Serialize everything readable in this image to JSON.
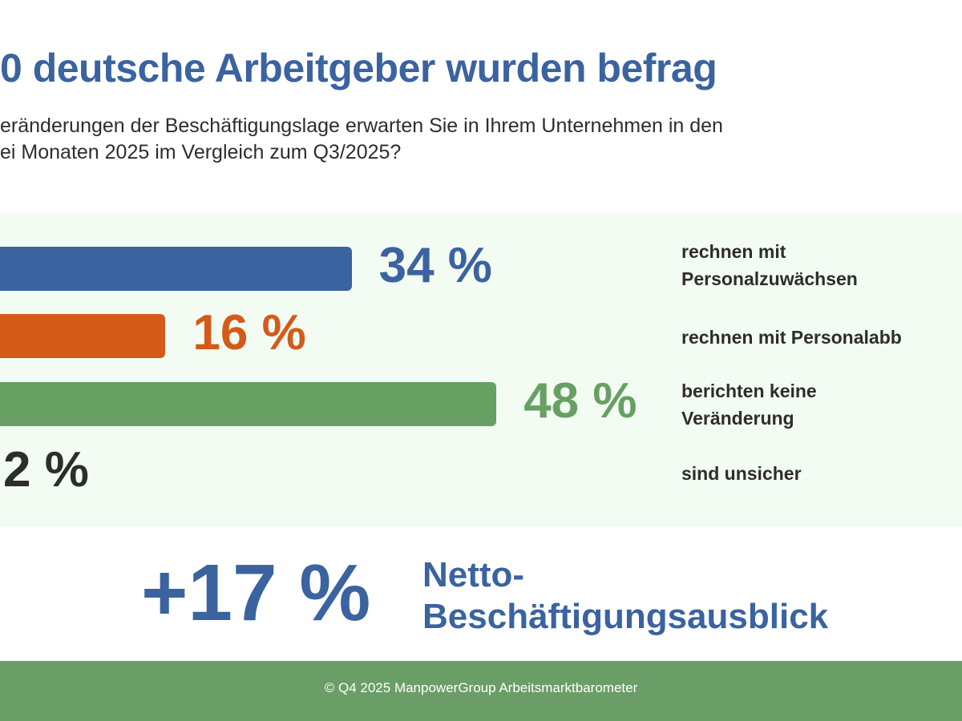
{
  "title": "0 deutsche Arbeitgeber wurden befrag",
  "subtitle_lines": [
    "eränderungen der Beschäftigungslage erwarten Sie in Ihrem Unternehmen in den",
    "ei Monaten 2025 im Vergleich zum Q3/2025?"
  ],
  "chart_data": {
    "type": "bar",
    "orientation": "horizontal",
    "categories": [
      "rechnen mit Personalzuwächsen",
      "rechnen mit Personalabb",
      "berichten keine Veränderung",
      "sind unsicher"
    ],
    "category_lines": [
      [
        "rechnen mit",
        "Personalzuwächsen"
      ],
      [
        "rechnen mit Personalabb"
      ],
      [
        "berichten keine",
        "Veränderung"
      ],
      [
        "sind unsicher"
      ]
    ],
    "values": [
      34,
      16,
      48,
      2
    ],
    "value_labels": [
      "34 %",
      "16 %",
      "48 %",
      "2 %"
    ],
    "colors": [
      "#3a63a0",
      "#d45a1a",
      "#68a064",
      "#2d2d2d"
    ]
  },
  "net": {
    "value": "+17 %",
    "label_lines": [
      "Netto-",
      "Beschäftigungsausblick"
    ]
  },
  "footer": "© Q4 2025 ManpowerGroup Arbeitsmarktbarometer"
}
